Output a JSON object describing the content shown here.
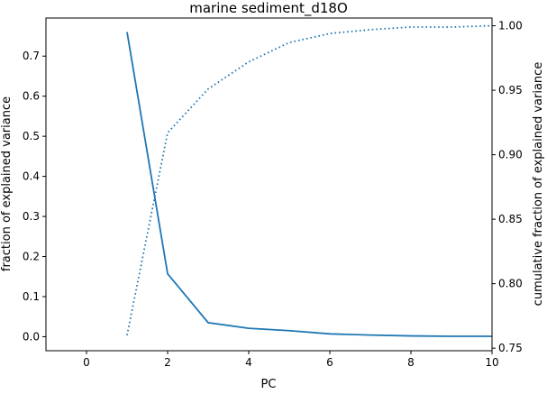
{
  "chart_data": {
    "type": "line",
    "title": "marine sediment_d18O",
    "xlabel": "PC",
    "ylabel_left": "fraction of explained variance",
    "ylabel_right": "cumulative fraction of explained variance",
    "xlim": [
      -1,
      10
    ],
    "ylim_left": [
      -0.035,
      0.795
    ],
    "ylim_right": [
      0.748,
      1.006
    ],
    "xticks": [
      0,
      2,
      4,
      6,
      8,
      10
    ],
    "yticks_left": [
      0.0,
      0.1,
      0.2,
      0.3,
      0.4,
      0.5,
      0.6,
      0.7
    ],
    "yticks_right": [
      0.75,
      0.8,
      0.85,
      0.9,
      0.95,
      1.0
    ],
    "grid": false,
    "legend": "none",
    "line_color": "#1f77b4",
    "series": [
      {
        "axis": "left",
        "style": "solid",
        "x": [
          1,
          2,
          3,
          4,
          5,
          6,
          7,
          8,
          9,
          10
        ],
        "values": [
          0.76,
          0.157,
          0.035,
          0.021,
          0.015,
          0.007,
          0.004,
          0.002,
          0.001,
          0.001
        ]
      },
      {
        "axis": "right",
        "style": "dotted",
        "x": [
          1,
          2,
          3,
          4,
          5,
          6,
          7,
          8,
          9,
          10
        ],
        "values": [
          0.76,
          0.917,
          0.951,
          0.972,
          0.987,
          0.994,
          0.997,
          0.999,
          0.999,
          1.0
        ]
      }
    ]
  }
}
